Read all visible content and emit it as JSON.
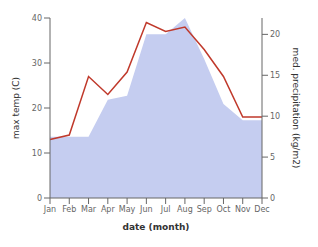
{
  "chart_data": {
    "type": "line",
    "categories": [
      "Jan",
      "Feb",
      "Mar",
      "Apr",
      "May",
      "Jun",
      "Jul",
      "Aug",
      "Sep",
      "Oct",
      "Nov",
      "Dec"
    ],
    "series": [
      {
        "type": "area",
        "color": "#c5cdf0",
        "values": [
          7.5,
          7.5,
          7.5,
          12,
          12.5,
          20,
          20,
          22,
          17,
          11.5,
          9.5,
          9.5
        ],
        "axis": "y2"
      },
      {
        "type": "line",
        "color": "#c0392b",
        "values": [
          13,
          14,
          27,
          23,
          28,
          39,
          37,
          38,
          33,
          27,
          18,
          18
        ]
      }
    ],
    "xlabel": "date (month)",
    "ylabel": "max temp (C)",
    "y2label": "med. precipitation (kg/m2)",
    "ylim": [
      0,
      40
    ],
    "yticks": [
      0,
      10,
      20,
      30,
      40
    ],
    "y2lim": [
      0,
      22
    ],
    "y2ticks": [
      0,
      5,
      10,
      15,
      20
    ],
    "grid": false
  }
}
